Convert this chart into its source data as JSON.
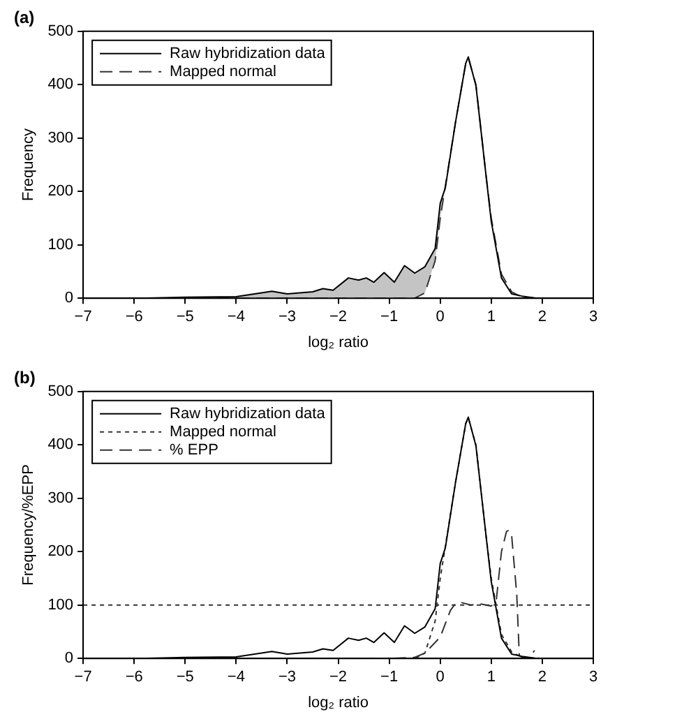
{
  "chart_data": [
    {
      "type": "line",
      "title": "(a)",
      "xlabel": "log₂ ratio",
      "ylabel": "Frequency",
      "xlim": [
        -7,
        3
      ],
      "xticks": [
        -7,
        -6,
        -5,
        -4,
        -3,
        -2,
        -1,
        0,
        1,
        2,
        3
      ],
      "ylim": [
        0,
        500
      ],
      "yticks": [
        0,
        100,
        200,
        300,
        400,
        500
      ],
      "grid": false,
      "legend": "top left",
      "marker": "none",
      "x": [
        -5.9,
        -5,
        -4,
        -3.3,
        -3,
        -2.5,
        -2.3,
        -2.1,
        -1.8,
        -1.6,
        -1.45,
        -1.3,
        -1.1,
        -0.9,
        -0.7,
        -0.5,
        -0.3,
        -0.1,
        0,
        0.1,
        0.3,
        0.5,
        0.55,
        0.7,
        0.9,
        1,
        1.2,
        1.4,
        1.6,
        1.9
      ],
      "series": [
        {
          "name": "Raw hybridization data",
          "color": "#000000",
          "line_style": "solid",
          "values": [
            0,
            2,
            3,
            13,
            8,
            12,
            18,
            15,
            38,
            34,
            38,
            30,
            48,
            30,
            61,
            47,
            59,
            93,
            178,
            207,
            330,
            440,
            452,
            398,
            228,
            144,
            38,
            8,
            4,
            0
          ],
          "lower": [
            0,
            0,
            0,
            0,
            0,
            0,
            0,
            0,
            0,
            0,
            0,
            0,
            0,
            0,
            0,
            0,
            10,
            70,
            150,
            210,
            null,
            null,
            null,
            null,
            null,
            null,
            null,
            null,
            null,
            null
          ],
          "upper": [
            0,
            2,
            3,
            13,
            8,
            12,
            18,
            15,
            38,
            34,
            38,
            30,
            48,
            30,
            61,
            47,
            59,
            93,
            178,
            207,
            null,
            null,
            null,
            null,
            null,
            null,
            null,
            null,
            null,
            null
          ]
        },
        {
          "name": "Mapped normal",
          "color": "#333333",
          "line_style": "dashed",
          "values": [
            0,
            0,
            0,
            0,
            0,
            0,
            0,
            0,
            0,
            0,
            0,
            0,
            0,
            0,
            0,
            0,
            10,
            70,
            150,
            210,
            330,
            440,
            450,
            400,
            228,
            150,
            45,
            12,
            2,
            0
          ]
        }
      ]
    },
    {
      "type": "line",
      "title": "(b)",
      "xlabel": "log₂ ratio",
      "ylabel": "Frequency/%EPP",
      "xlim": [
        -7,
        3
      ],
      "xticks": [
        -7,
        -6,
        -5,
        -4,
        -3,
        -2,
        -1,
        0,
        1,
        2,
        3
      ],
      "ylim": [
        0,
        500
      ],
      "yticks": [
        0,
        100,
        200,
        300,
        400,
        500
      ],
      "grid": false,
      "legend": "top left",
      "marker": "none",
      "ref_lines": [
        {
          "axis": "y",
          "value": 100,
          "line_style": "dotted"
        }
      ],
      "x": [
        -5.9,
        -5,
        -4,
        -3.3,
        -3,
        -2.5,
        -2.3,
        -2.1,
        -1.8,
        -1.6,
        -1.45,
        -1.3,
        -1.1,
        -0.9,
        -0.7,
        -0.5,
        -0.3,
        -0.1,
        0,
        0.1,
        0.3,
        0.5,
        0.55,
        0.7,
        0.9,
        1,
        1.2,
        1.4,
        1.6,
        1.9
      ],
      "series": [
        {
          "name": "Raw hybridization data",
          "color": "#000000",
          "line_style": "solid",
          "values": [
            0,
            2,
            3,
            13,
            8,
            12,
            18,
            15,
            38,
            34,
            38,
            30,
            48,
            30,
            61,
            47,
            59,
            93,
            178,
            207,
            330,
            440,
            452,
            398,
            228,
            144,
            38,
            8,
            4,
            0
          ]
        },
        {
          "name": "Mapped normal",
          "color": "#333333",
          "line_style": "dotted",
          "values": [
            0,
            0,
            0,
            0,
            0,
            0,
            0,
            0,
            0,
            0,
            0,
            0,
            0,
            0,
            0,
            0,
            10,
            70,
            150,
            210,
            330,
            440,
            450,
            400,
            228,
            150,
            45,
            12,
            2,
            0
          ]
        },
        {
          "name": "% EPP",
          "color": "#333333",
          "line_style": "dashed",
          "x": [
            -5.9,
            -1,
            -0.5,
            -0.3,
            0,
            0.2,
            0.3,
            0.4,
            0.6,
            0.8,
            1.0,
            1.1,
            1.2,
            1.3,
            1.35,
            1.4,
            1.5,
            1.55,
            1.65,
            1.75,
            1.85
          ],
          "values": [
            0,
            0,
            2,
            10,
            40,
            90,
            103,
            105,
            100,
            102,
            98,
            110,
            200,
            238,
            240,
            230,
            120,
            5,
            0,
            2,
            15
          ]
        }
      ]
    }
  ]
}
